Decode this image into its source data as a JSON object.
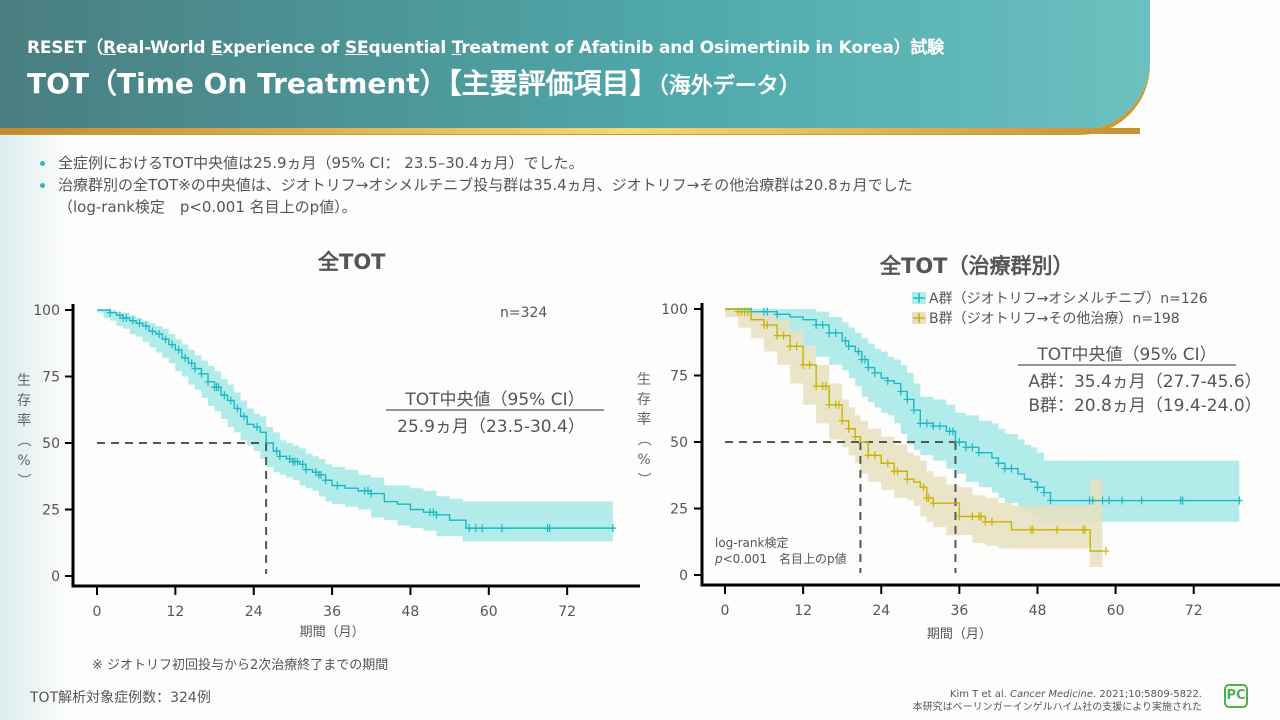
{
  "header": {
    "subtitle_parts": [
      "RESET（",
      "R",
      "eal-World ",
      "E",
      "xperience of ",
      "SE",
      "quential ",
      "T",
      "reatment of Afatinib and Osimertinib in Korea）試験"
    ],
    "title_main": "TOT（Time On Treatment）【主要評価項目】",
    "title_suffix": "（海外データ）"
  },
  "bullets": [
    "全症例におけるTOT中央値は25.9ヵ月（95% CI： 23.5–30.4ヵ月）でした。",
    "治療群別の全TOT※の中央値は、ジオトリフ→オシメルチニブ投与群は35.4ヵ月、ジオトリフ→その他治療群は20.8ヵ月でした",
    "（log-rank検定　p<0.001  名目上のp値）。"
  ],
  "footnote": "※ ジオトリフ初回投与から2次治療終了までの期間",
  "analysis_count": "TOT解析対象症例数：324例",
  "reference": {
    "line1_prefix": "Kim T et al. ",
    "line1_journal": "Cancer Medicine",
    "line1_suffix": ". 2021;10:5809-5822.",
    "line2": "本研究はベーリンガーインゲルハイム社の支援により実施された"
  },
  "logo_text": "PC",
  "colors": {
    "groupA": "#1cb8c4",
    "groupA_ci": "#b2ecea",
    "groupB": "#c8b400",
    "groupB_ci": "#e6e1c0",
    "overlap": "#b8dcb0"
  },
  "chart_data": [
    {
      "type": "line",
      "title": "全TOT",
      "xlabel": "期間（月）",
      "ylabel": "生存率（%）",
      "xticks": [
        0,
        12,
        24,
        36,
        48,
        60,
        72
      ],
      "yticks": [
        0,
        25,
        50,
        75,
        100
      ],
      "xlim": [
        -3.5,
        80
      ],
      "ylim": [
        0,
        100
      ],
      "n_label": "n=324",
      "median_box": {
        "header": "TOT中央値（95% CI）",
        "lines": [
          "25.9ヵ月（23.5-30.4）"
        ]
      },
      "median_line": {
        "x": 25.9,
        "y": 50
      },
      "series": [
        {
          "name": "全症例",
          "color_key": "groupA",
          "x": [
            0,
            1,
            2,
            3,
            4,
            5,
            6,
            7,
            8,
            9,
            10,
            11,
            12,
            13,
            14,
            15,
            16,
            17,
            18,
            19,
            20,
            21,
            22,
            23,
            24,
            25,
            25.9,
            27,
            28,
            29,
            30,
            31,
            32,
            33,
            34,
            35,
            36,
            38,
            40,
            42,
            44,
            46,
            48,
            50,
            52,
            54,
            56,
            56.5,
            60,
            66,
            72,
            79
          ],
          "y": [
            100,
            100,
            99,
            98,
            97,
            96,
            95,
            94,
            92,
            91,
            89,
            87,
            85,
            82,
            80,
            78,
            76,
            73,
            71,
            68,
            66,
            63,
            60,
            57,
            56,
            54,
            50,
            47,
            45,
            44,
            43,
            42,
            40,
            39,
            38,
            36,
            34,
            33,
            32,
            31,
            28,
            27,
            25,
            24,
            23,
            21,
            21,
            18,
            18,
            18,
            18,
            18
          ],
          "ci_upper": [
            100,
            100,
            100,
            99,
            99,
            98,
            97,
            96,
            95,
            94,
            93,
            91,
            89,
            87,
            85,
            83,
            81,
            79,
            77,
            74,
            72,
            69,
            66,
            63,
            61,
            60,
            56,
            54,
            51,
            50,
            49,
            48,
            46,
            45,
            44,
            42,
            41,
            40,
            38,
            37,
            34,
            34,
            33,
            32,
            30,
            29,
            28,
            28,
            28,
            28,
            28,
            28
          ],
          "ci_lower": [
            100,
            99,
            97,
            96,
            94,
            93,
            91,
            90,
            88,
            86,
            84,
            82,
            80,
            77,
            75,
            72,
            70,
            67,
            64,
            62,
            59,
            56,
            54,
            51,
            49,
            47,
            44,
            41,
            39,
            38,
            37,
            36,
            34,
            33,
            32,
            30,
            28,
            27,
            26,
            25,
            22,
            21,
            19,
            18,
            17,
            15,
            15,
            13,
            13,
            13,
            13,
            13
          ],
          "censor_x": [
            2,
            3.5,
            4,
            4.5,
            5.5,
            6.5,
            7.5,
            8.5,
            9.5,
            10.5,
            11.5,
            12.5,
            13.5,
            14.5,
            15,
            16,
            17,
            18,
            18.3,
            18.6,
            19.5,
            20.5,
            21.5,
            22.5,
            24.5,
            27.5,
            28,
            29.5,
            30,
            30.3,
            30.7,
            31.5,
            32,
            33.5,
            34,
            34.3,
            35,
            36.8,
            41,
            41.5,
            42,
            51,
            51.5,
            52,
            57,
            58,
            59,
            62,
            69,
            69.3,
            79
          ]
        }
      ]
    },
    {
      "type": "line",
      "title": "全TOT（治療群別）",
      "xlabel": "期間（月）",
      "ylabel": "生存率（%）",
      "xticks": [
        0,
        12,
        24,
        36,
        48,
        60,
        72
      ],
      "yticks": [
        0,
        25,
        50,
        75,
        100
      ],
      "xlim": [
        -3.5,
        80
      ],
      "ylim": [
        0,
        100
      ],
      "legend": [
        {
          "label": "A群（ジオトリフ→オシメルチニブ）n=126",
          "color_key": "groupA"
        },
        {
          "label": "B群（ジオトリフ→その他治療）n=198",
          "color_key": "groupB"
        }
      ],
      "legend_position": "top-right",
      "median_box": {
        "header": "TOT中央値（95% CI）",
        "lines": [
          "A群：35.4ヵ月（27.7-45.6）",
          "B群：20.8ヵ月（19.4-24.0）"
        ]
      },
      "annotation": {
        "line1": "log-rank検定",
        "line2_italic": "p",
        "line2_rest": "<0.001　名目上のp値"
      },
      "median_lines": [
        {
          "x": 20.8,
          "y": 50
        },
        {
          "x": 35.4,
          "y": 50
        }
      ],
      "series": [
        {
          "name": "A群",
          "color_key": "groupA",
          "x": [
            0,
            2,
            4,
            6,
            8,
            10,
            12,
            14,
            16,
            18,
            19,
            20,
            21,
            22,
            23,
            24,
            25,
            26,
            27,
            28,
            29,
            30,
            32,
            34,
            35.4,
            37,
            39,
            41,
            42,
            43,
            45,
            46,
            47,
            48,
            49,
            50,
            55,
            60,
            66,
            72,
            79
          ],
          "y": [
            100,
            100,
            99,
            99,
            98,
            97,
            96,
            94,
            91,
            88,
            86,
            84,
            81,
            78,
            76,
            74,
            73,
            72,
            69,
            66,
            62,
            57,
            56,
            54,
            50,
            48,
            46,
            44,
            42,
            40,
            38,
            36,
            35,
            33,
            31,
            28,
            28,
            28,
            28,
            28,
            28
          ],
          "ci_upper": [
            100,
            100,
            100,
            100,
            100,
            100,
            100,
            99,
            97,
            95,
            93,
            91,
            89,
            87,
            85,
            84,
            82,
            81,
            79,
            76,
            72,
            67,
            66,
            64,
            61,
            60,
            58,
            57,
            55,
            53,
            51,
            49,
            48,
            46,
            43,
            43,
            43,
            43,
            43,
            43,
            43
          ],
          "ci_lower": [
            100,
            99,
            97,
            95,
            93,
            91,
            89,
            86,
            82,
            79,
            77,
            74,
            71,
            67,
            65,
            63,
            61,
            60,
            57,
            53,
            49,
            47,
            45,
            43,
            40,
            38,
            35,
            33,
            31,
            29,
            27,
            25,
            24,
            22,
            20,
            20,
            20,
            20,
            20,
            20,
            20
          ],
          "censor_x": [
            4,
            6,
            6.5,
            8,
            14,
            15,
            16,
            17,
            18.5,
            19,
            20.5,
            21,
            21.5,
            22,
            23,
            25,
            27,
            28,
            29,
            30,
            31,
            32,
            33,
            34.5,
            35,
            36,
            37,
            38,
            39,
            42,
            43,
            44,
            48,
            49,
            50,
            56,
            56.5,
            58,
            59,
            61,
            64,
            70,
            70.3,
            79
          ]
        },
        {
          "name": "B群",
          "color_key": "groupB",
          "x": [
            0,
            2,
            4,
            6,
            8,
            10,
            12,
            14,
            16,
            18,
            19,
            20,
            20.8,
            22,
            24,
            26,
            28,
            29,
            30,
            31,
            32,
            34,
            36,
            38,
            40,
            42,
            44,
            50,
            56,
            56.1,
            58
          ],
          "y": [
            100,
            99,
            96,
            94,
            90,
            86,
            79,
            71,
            64,
            58,
            55,
            52,
            50,
            45,
            42,
            39,
            36,
            35,
            33,
            29,
            27,
            27,
            22,
            22,
            20,
            20,
            17,
            17,
            17,
            9,
            9
          ],
          "ci_upper": [
            100,
            100,
            99,
            98,
            96,
            92,
            86,
            79,
            72,
            66,
            63,
            60,
            58,
            55,
            52,
            49,
            46,
            45,
            43,
            39,
            37,
            34,
            33,
            30,
            29,
            27,
            26,
            26,
            26,
            36,
            36
          ],
          "ci_lower": [
            100,
            97,
            93,
            89,
            84,
            79,
            72,
            64,
            57,
            51,
            48,
            45,
            42,
            38,
            35,
            32,
            29,
            28,
            26,
            22,
            20,
            18,
            15,
            15,
            12,
            11,
            10,
            10,
            10,
            3,
            3
          ],
          "censor_x": [
            2,
            2.5,
            3,
            3.5,
            6,
            6.5,
            8,
            9,
            10,
            11,
            12,
            13,
            14,
            15,
            15.5,
            16,
            17,
            17.5,
            18,
            19,
            20,
            22,
            23,
            25,
            26,
            26.5,
            28,
            30.5,
            31,
            31.3,
            32,
            36,
            38,
            39,
            39.3,
            40,
            41,
            47,
            47.3,
            51,
            55,
            55.3,
            58.5
          ]
        }
      ]
    }
  ]
}
